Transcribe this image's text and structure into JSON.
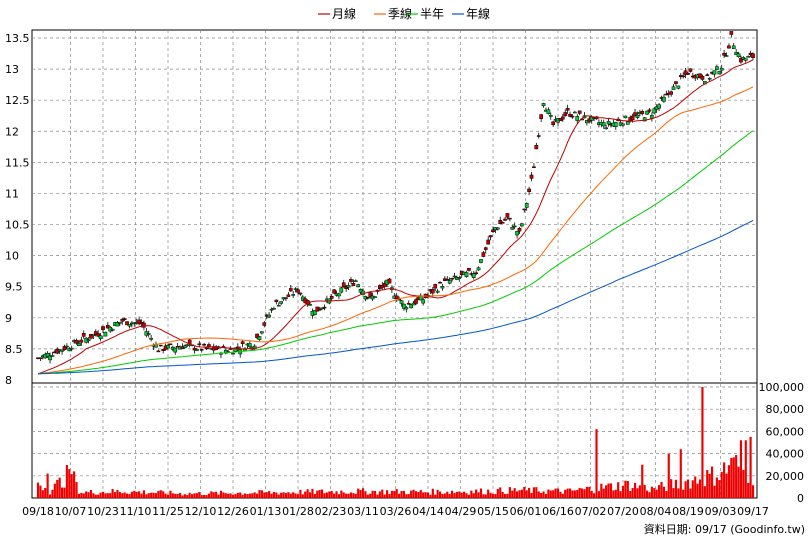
{
  "chart_data": {
    "type": "candlestick",
    "legend": [
      {
        "label": "月線",
        "color": "#c00000"
      },
      {
        "label": "季線",
        "color": "#ff6600"
      },
      {
        "label": "半年",
        "color": "#00cc00"
      },
      {
        "label": "年線",
        "color": "#0055cc"
      }
    ],
    "legend_position": "top-center",
    "x_tick_labels": [
      "09/18",
      "10/07",
      "10/23",
      "11/10",
      "11/25",
      "12/10",
      "12/26",
      "01/13",
      "01/28",
      "02/23",
      "03/11",
      "03/26",
      "04/14",
      "04/29",
      "05/15",
      "06/01",
      "06/16",
      "07/02",
      "07/20",
      "08/04",
      "08/19",
      "09/03",
      "09/17"
    ],
    "price_axis": {
      "ticks": [
        8,
        8.5,
        9,
        9.5,
        10,
        10.5,
        11,
        11.5,
        12,
        12.5,
        13,
        13.5
      ],
      "ylim": [
        8,
        13.6
      ]
    },
    "volume_axis": {
      "ticks": [
        0,
        20000,
        40000,
        60000,
        80000,
        100000
      ],
      "tick_labels": [
        "0",
        "20,000",
        "40,000",
        "60,000",
        "80,000",
        "100,000"
      ],
      "ylim": [
        0,
        110000
      ]
    },
    "close_keypoints": [
      [
        0,
        8.35
      ],
      [
        10,
        8.5
      ],
      [
        25,
        8.75
      ],
      [
        35,
        8.95
      ],
      [
        43,
        8.9
      ],
      [
        50,
        8.5
      ],
      [
        60,
        8.55
      ],
      [
        70,
        8.5
      ],
      [
        80,
        8.48
      ],
      [
        90,
        8.6
      ],
      [
        98,
        9.2
      ],
      [
        108,
        9.45
      ],
      [
        115,
        9.1
      ],
      [
        125,
        9.4
      ],
      [
        132,
        9.6
      ],
      [
        138,
        9.3
      ],
      [
        145,
        9.55
      ],
      [
        152,
        9.2
      ],
      [
        160,
        9.3
      ],
      [
        168,
        9.55
      ],
      [
        175,
        9.65
      ],
      [
        182,
        9.75
      ],
      [
        190,
        10.45
      ],
      [
        195,
        10.6
      ],
      [
        200,
        10.35
      ],
      [
        205,
        11.2
      ],
      [
        210,
        12.5
      ],
      [
        214,
        12.1
      ],
      [
        220,
        12.3
      ],
      [
        228,
        12.2
      ],
      [
        236,
        12.1
      ],
      [
        245,
        12.2
      ],
      [
        255,
        12.3
      ],
      [
        262,
        12.6
      ],
      [
        270,
        12.95
      ],
      [
        278,
        12.85
      ],
      [
        284,
        13.05
      ],
      [
        288,
        13.5
      ],
      [
        292,
        13.15
      ],
      [
        297,
        13.2
      ]
    ],
    "volume_keypoints": [
      [
        0,
        15000
      ],
      [
        5,
        6000
      ],
      [
        12,
        20000
      ],
      [
        18,
        5000
      ],
      [
        35,
        6000
      ],
      [
        60,
        4000
      ],
      [
        80,
        4500
      ],
      [
        100,
        5000
      ],
      [
        130,
        6000
      ],
      [
        160,
        5500
      ],
      [
        185,
        6000
      ],
      [
        200,
        7000
      ],
      [
        220,
        6000
      ],
      [
        245,
        12000
      ],
      [
        255,
        8000
      ],
      [
        270,
        15000
      ],
      [
        280,
        20000
      ],
      [
        290,
        30000
      ],
      [
        297,
        20000
      ]
    ],
    "volume_spikes": [
      [
        4,
        22000
      ],
      [
        13,
        26000
      ],
      [
        15,
        24000
      ],
      [
        232,
        62000
      ],
      [
        251,
        30000
      ],
      [
        262,
        40000
      ],
      [
        267,
        44000
      ],
      [
        276,
        100000
      ],
      [
        288,
        36000
      ],
      [
        292,
        52000
      ],
      [
        294,
        52000
      ],
      [
        296,
        55000
      ]
    ],
    "bar_count": 298,
    "footer_note": "資料日期: 09/17 (Goodinfo.tw)"
  }
}
